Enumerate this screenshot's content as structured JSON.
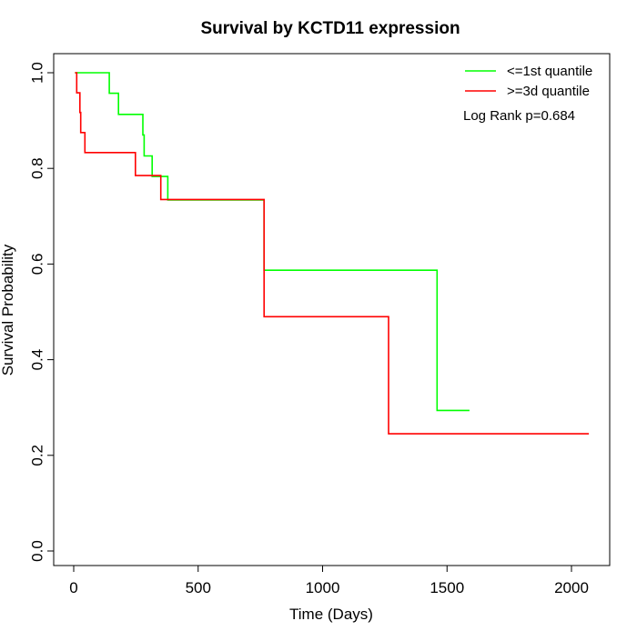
{
  "chart_data": {
    "type": "line",
    "step": true,
    "title": "Survival by KCTD11 expression",
    "xlabel": "Time (Days)",
    "ylabel": "Survival Probability",
    "xlim": [
      0,
      2070
    ],
    "ylim": [
      0,
      1
    ],
    "xticks": [
      0,
      500,
      1000,
      1500,
      2000
    ],
    "xtick_labels": [
      "0",
      "500",
      "1000",
      "1500",
      "2000"
    ],
    "yticks": [
      0,
      0.2,
      0.4,
      0.6,
      0.8,
      1
    ],
    "ytick_labels": [
      "0.0",
      "0.2",
      "0.4",
      "0.6",
      "0.8",
      "1.0"
    ],
    "legend_position": "top-right",
    "annotation": "Log Rank p=0.684",
    "grid": false,
    "series": [
      {
        "name": "<=1st quantile",
        "color": "#00ff00",
        "points": [
          [
            5,
            1.0
          ],
          [
            143,
            1.0
          ],
          [
            143,
            0.957
          ],
          [
            180,
            0.957
          ],
          [
            180,
            0.913
          ],
          [
            278,
            0.913
          ],
          [
            278,
            0.87
          ],
          [
            283,
            0.87
          ],
          [
            283,
            0.826
          ],
          [
            315,
            0.826
          ],
          [
            315,
            0.783
          ],
          [
            378,
            0.783
          ],
          [
            378,
            0.734
          ],
          [
            765,
            0.734
          ],
          [
            765,
            0.587
          ],
          [
            1460,
            0.587
          ],
          [
            1460,
            0.294
          ],
          [
            1590,
            0.294
          ]
        ]
      },
      {
        "name": ">=3d quantile",
        "color": "#ff0000",
        "points": [
          [
            5,
            1.0
          ],
          [
            12,
            1.0
          ],
          [
            12,
            0.958
          ],
          [
            25,
            0.958
          ],
          [
            25,
            0.917
          ],
          [
            28,
            0.917
          ],
          [
            28,
            0.875
          ],
          [
            45,
            0.875
          ],
          [
            45,
            0.833
          ],
          [
            248,
            0.833
          ],
          [
            248,
            0.785
          ],
          [
            350,
            0.785
          ],
          [
            350,
            0.735
          ],
          [
            765,
            0.735
          ],
          [
            765,
            0.49
          ],
          [
            1265,
            0.49
          ],
          [
            1265,
            0.245
          ],
          [
            2070,
            0.245
          ]
        ]
      }
    ]
  }
}
